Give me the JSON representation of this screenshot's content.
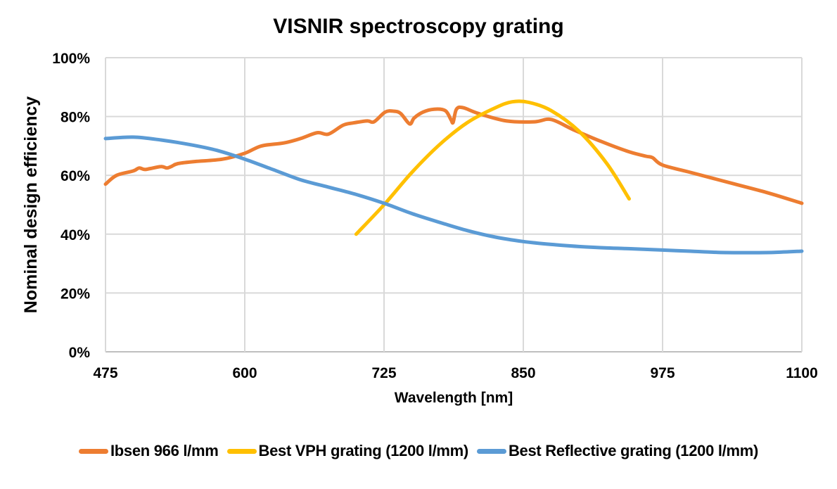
{
  "chart_data": {
    "type": "line",
    "title": "VISNIR spectroscopy grating",
    "xlabel": "Wavelength [nm]",
    "ylabel": "Nominal design efficiency",
    "xlim": [
      475,
      1100
    ],
    "ylim": [
      0,
      100
    ],
    "x_ticks": [
      "475",
      "600",
      "725",
      "850",
      "975",
      "1100"
    ],
    "y_ticks": [
      "0%",
      "20%",
      "40%",
      "60%",
      "80%",
      "100%"
    ],
    "grid": true,
    "legend_position": "bottom",
    "series": [
      {
        "name": "Ibsen 966 l/mm",
        "color": "#ED7D31",
        "x": [
          475,
          485,
          500,
          505,
          510,
          515,
          525,
          530,
          534,
          540,
          555,
          580,
          600,
          615,
          635,
          650,
          665,
          675,
          688,
          697,
          710,
          716,
          726,
          734,
          740,
          748,
          752,
          760,
          770,
          780,
          785,
          787,
          790,
          796,
          810,
          835,
          860,
          875,
          895,
          920,
          945,
          960,
          966,
          975,
          1000,
          1040,
          1070,
          1100
        ],
        "y": [
          57,
          60,
          61.5,
          62.5,
          62,
          62.3,
          63,
          62.5,
          63,
          64,
          64.7,
          65.5,
          67.5,
          70,
          71,
          72.5,
          74.5,
          74,
          77,
          77.8,
          78.5,
          78.2,
          81.5,
          81.8,
          81,
          77.5,
          79.5,
          81.5,
          82.5,
          82,
          79,
          78,
          82.5,
          83,
          81,
          78.5,
          78.2,
          79,
          75.5,
          71.5,
          68,
          66.5,
          66,
          63.5,
          61,
          57,
          54,
          50.5
        ]
      },
      {
        "name": "Best VPH grating (1200 l/mm)",
        "color": "#FFC000",
        "x": [
          700,
          725,
          750,
          775,
          800,
          825,
          840,
          855,
          875,
          900,
          925,
          945
        ],
        "y": [
          40,
          50,
          61,
          70.5,
          78,
          83,
          85,
          84.8,
          82,
          75,
          64,
          52
        ]
      },
      {
        "name": "Best Reflective grating (1200 l/mm)",
        "color": "#5B9BD5",
        "x": [
          475,
          500,
          525,
          550,
          575,
          600,
          625,
          650,
          675,
          700,
          725,
          750,
          775,
          800,
          825,
          850,
          875,
          900,
          925,
          950,
          975,
          1000,
          1025,
          1050,
          1075,
          1100
        ],
        "y": [
          72.5,
          73,
          72,
          70.5,
          68.5,
          65.5,
          62,
          58.5,
          56,
          53.5,
          50.5,
          47,
          44,
          41.2,
          39,
          37.5,
          36.5,
          35.8,
          35.3,
          35,
          34.6,
          34.2,
          33.8,
          33.7,
          33.8,
          34.2
        ]
      }
    ]
  },
  "legend": {
    "items": [
      {
        "label": "Ibsen 966 l/mm",
        "color": "#ED7D31"
      },
      {
        "label": "Best VPH grating (1200 l/mm)",
        "color": "#FFC000"
      },
      {
        "label": "Best Reflective grating (1200 l/mm)",
        "color": "#5B9BD5"
      }
    ]
  }
}
